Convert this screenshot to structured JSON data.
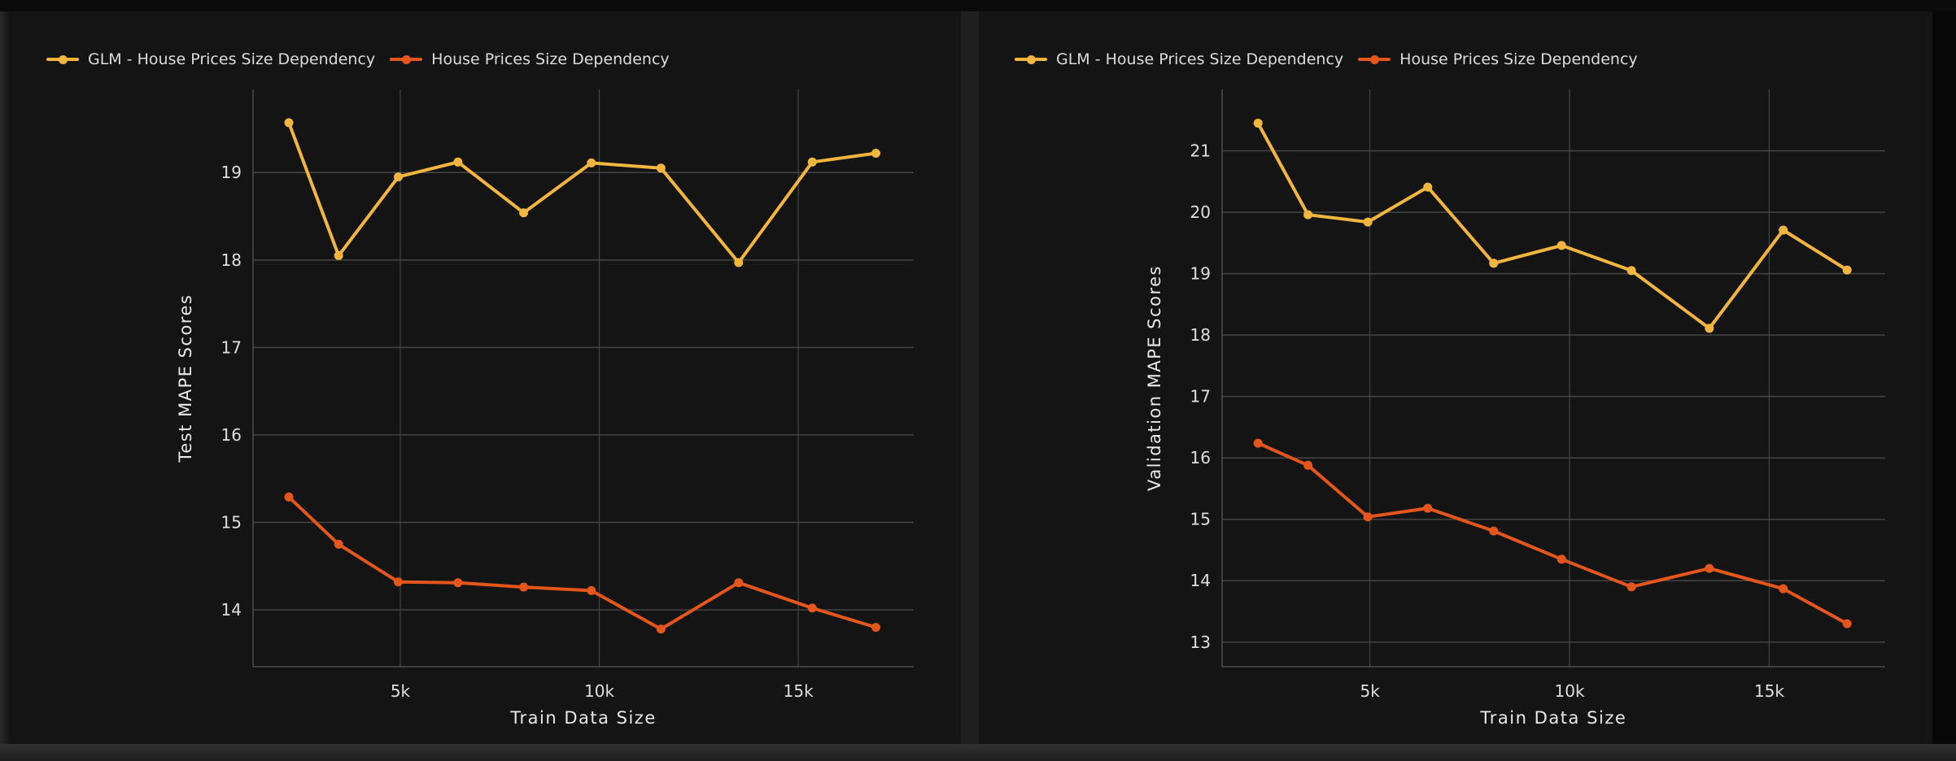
{
  "theme": {
    "page_bg": "#1f1f1f",
    "panel_bg": "#141414",
    "grid_color": "#454545",
    "axis_line_color": "#4d4d4d",
    "tick_label_color": "#dfdfdf",
    "axis_title_color": "#e8e8e8",
    "legend_text_color": "#dcdcdc",
    "series_yellow": "#f2b63e",
    "series_orange": "#e4561b"
  },
  "chart_data": [
    {
      "type": "line",
      "title": "",
      "xlabel": "Train Data Size",
      "ylabel": "Test MAPE Scores",
      "grid": true,
      "legend_position": "top-left",
      "x": [
        2200,
        3450,
        4950,
        6450,
        8100,
        9800,
        11550,
        13500,
        15350,
        16950
      ],
      "xlim": [
        1300,
        17900
      ],
      "ylim": [
        13.35,
        19.95
      ],
      "xticks": [
        {
          "value": 5000,
          "label": "5k"
        },
        {
          "value": 10000,
          "label": "10k"
        },
        {
          "value": 15000,
          "label": "15k"
        }
      ],
      "yticks": [
        14,
        15,
        16,
        17,
        18,
        19
      ],
      "series": [
        {
          "name": "GLM - House Prices Size Dependency",
          "color": "#f2b63e",
          "marker": "circle",
          "values": [
            19.57,
            18.05,
            18.95,
            19.12,
            18.54,
            19.11,
            19.05,
            17.97,
            19.12,
            19.22
          ]
        },
        {
          "name": "House Prices Size Dependency",
          "color": "#e4561b",
          "marker": "circle",
          "values": [
            15.29,
            14.75,
            14.32,
            14.31,
            14.26,
            14.22,
            13.78,
            14.31,
            14.02,
            13.8
          ]
        }
      ]
    },
    {
      "type": "line",
      "title": "",
      "xlabel": "Train Data Size",
      "ylabel": "Validation MAPE Scores",
      "grid": true,
      "legend_position": "top-left",
      "x": [
        2200,
        3450,
        4950,
        6450,
        8100,
        9800,
        11550,
        13500,
        15350,
        16950
      ],
      "xlim": [
        1300,
        17900
      ],
      "ylim": [
        12.6,
        22.0
      ],
      "xticks": [
        {
          "value": 5000,
          "label": "5k"
        },
        {
          "value": 10000,
          "label": "10k"
        },
        {
          "value": 15000,
          "label": "15k"
        }
      ],
      "yticks": [
        13,
        14,
        15,
        16,
        17,
        18,
        19,
        20,
        21
      ],
      "series": [
        {
          "name": "GLM - House Prices Size Dependency",
          "color": "#f2b63e",
          "marker": "circle",
          "values": [
            21.45,
            19.96,
            19.84,
            20.41,
            19.17,
            19.46,
            19.05,
            18.11,
            19.71,
            19.06
          ]
        },
        {
          "name": "House Prices Size Dependency",
          "color": "#e4561b",
          "marker": "circle",
          "values": [
            16.24,
            15.88,
            15.04,
            15.18,
            14.81,
            14.35,
            13.9,
            14.2,
            13.87,
            13.3
          ]
        }
      ]
    }
  ]
}
